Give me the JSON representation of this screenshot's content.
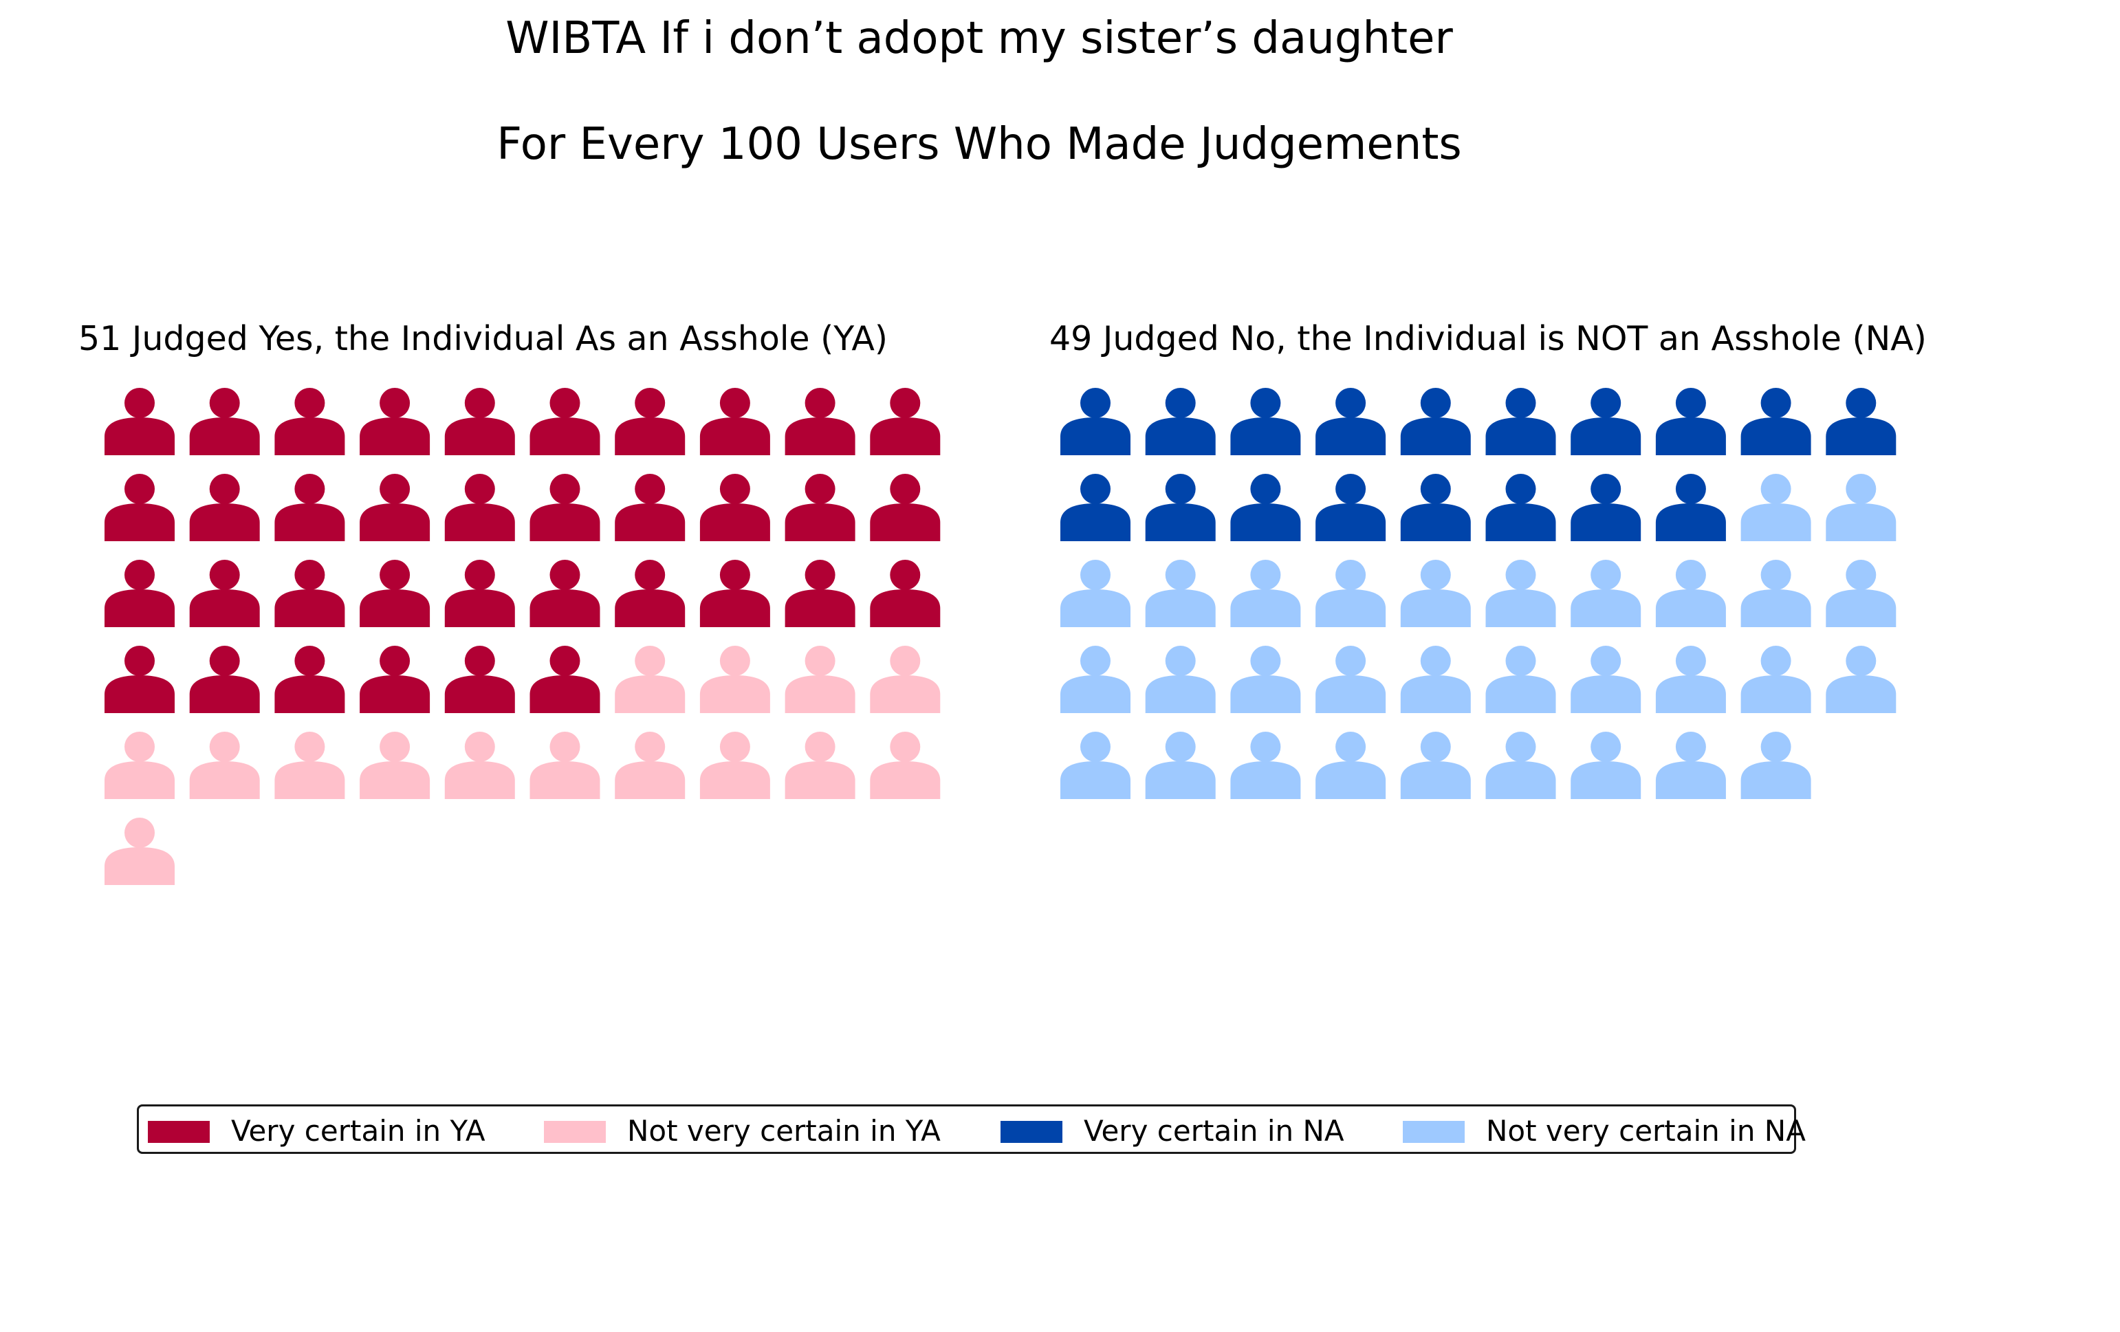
{
  "chart_data": {
    "type": "pictograph",
    "title": "WIBTA If i don’t adopt my sister’s daughter",
    "subtitle": "For Every 100 Users Who Made Judgements",
    "panels": [
      {
        "id": "ya",
        "title": "51 Judged Yes, the Individual As an Asshole (YA)",
        "series": [
          {
            "name": "Very certain in YA",
            "value": 36,
            "color": "#b10034"
          },
          {
            "name": "Not very certain in YA",
            "value": 15,
            "color": "#ffc0cb"
          }
        ],
        "icon": "person-icon"
      },
      {
        "id": "na",
        "title": "49 Judged No, the Individual is NOT an Asshole (NA)",
        "series": [
          {
            "name": "Very certain in NA",
            "value": 18,
            "color": "#0044aa"
          },
          {
            "name": "Not very certain in NA",
            "value": 31,
            "color": "#9ec9ff"
          }
        ],
        "icon": "person-icon"
      }
    ],
    "legend": {
      "position": "bottom",
      "items": [
        {
          "label": "Very certain in YA",
          "color": "#b10034"
        },
        {
          "label": "Not very certain in YA",
          "color": "#ffc0cb"
        },
        {
          "label": "Very certain in NA",
          "color": "#0044aa"
        },
        {
          "label": "Not very certain in NA",
          "color": "#9ec9ff"
        }
      ]
    }
  }
}
